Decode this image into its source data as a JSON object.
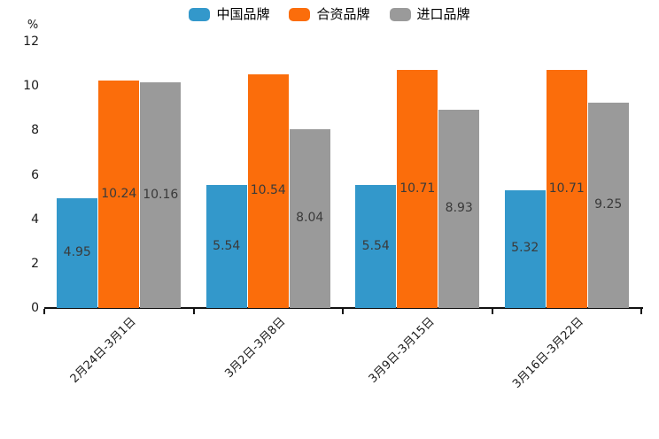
{
  "chart_data": {
    "type": "bar",
    "title": "",
    "unit": "%",
    "categories": [
      "2月24日-3月1日",
      "3月2日-3月8日",
      "3月9日-3月15日",
      "3月16日-3月22日"
    ],
    "series": [
      {
        "name": "中国品牌",
        "color": "#3398cb",
        "values": [
          4.95,
          5.54,
          5.54,
          5.32
        ]
      },
      {
        "name": "合资品牌",
        "color": "#fb6d0b",
        "values": [
          10.24,
          10.54,
          10.71,
          10.71
        ]
      },
      {
        "name": "进口品牌",
        "color": "#9a9a9a",
        "values": [
          10.16,
          8.04,
          8.93,
          9.25
        ]
      }
    ],
    "xlabel": "",
    "ylabel": "%",
    "ylim": [
      0,
      12
    ],
    "yticks": [
      0,
      2,
      4,
      6,
      8,
      10,
      12
    ],
    "grid": false,
    "legend_position": "top",
    "value_labels": "centered-in-bar",
    "colors": {
      "axis": "#111111",
      "tick_text": "#1a1a1a",
      "value_text": "#3a3a3a",
      "background": "#ffffff"
    }
  }
}
